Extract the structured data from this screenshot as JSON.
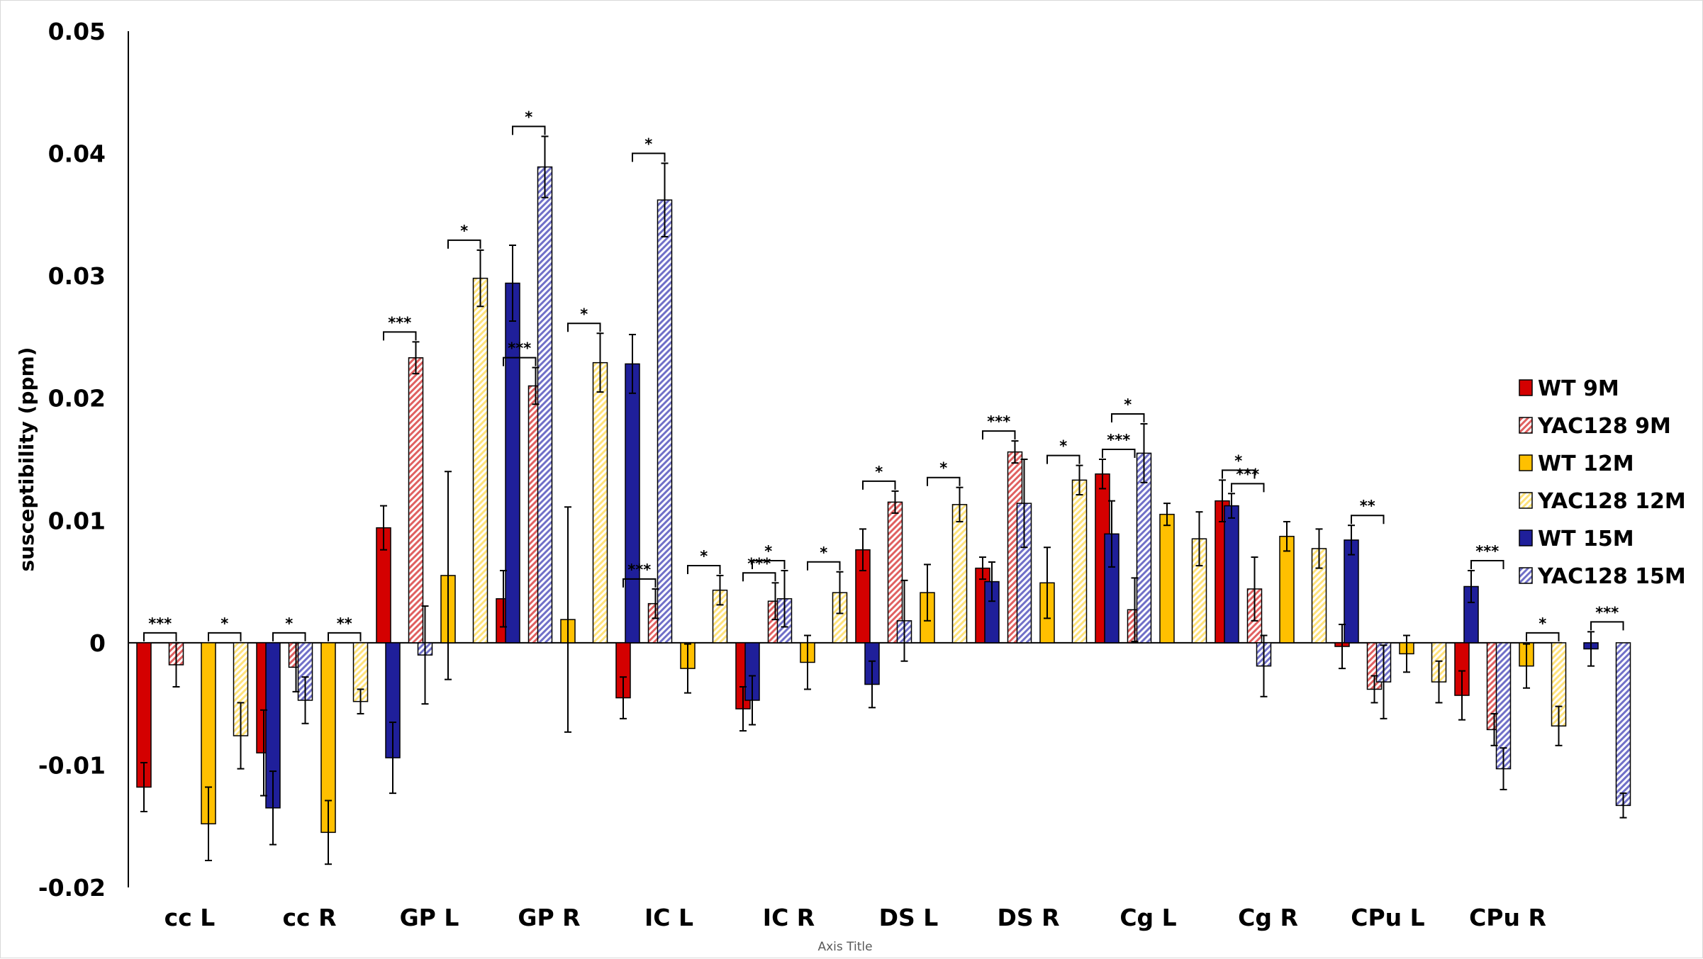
{
  "chart_data": {
    "type": "bar",
    "title": "",
    "xlabel": "Axis Title",
    "ylabel": "susceptibility (ppm)",
    "ylim": [
      -0.02,
      0.05
    ],
    "yticks": [
      0.05,
      0.04,
      0.03,
      0.02,
      0.01,
      0,
      -0.01,
      -0.02
    ],
    "ytick_labels": [
      "0.05",
      "0.04",
      "0.03",
      "0.02",
      "0.01",
      "0",
      "-0.01",
      "-0.02"
    ],
    "legend_position": "right",
    "categories": [
      "cc L",
      "cc R",
      "GP L",
      "GP R",
      "IC L",
      "IC R",
      "DS L",
      "DS R",
      "Cg L",
      "Cg R",
      "CPu L",
      "CPu R"
    ],
    "series": [
      {
        "name": "WT 9M",
        "color": "#d40000",
        "pattern": "solid",
        "values": [
          -0.0118,
          -0.009,
          0.0094,
          0.0036,
          -0.0045,
          -0.0054,
          0.0076,
          0.0061,
          0.0138,
          0.0116,
          -0.0003,
          -0.0043
        ],
        "errors": [
          0.002,
          0.0035,
          0.0018,
          0.0023,
          0.0017,
          0.0018,
          0.0017,
          0.0009,
          0.0012,
          0.0017,
          0.0018,
          0.002
        ]
      },
      {
        "name": "YAC128 9M",
        "color": "#e06060",
        "pattern": "hatched",
        "values": [
          -0.0018,
          -0.002,
          0.0233,
          0.021,
          0.0032,
          0.0034,
          0.0115,
          0.0156,
          0.0027,
          0.0044,
          -0.0038,
          -0.0071
        ],
        "errors": [
          0.0018,
          0.002,
          0.0013,
          0.0015,
          0.0012,
          0.0015,
          0.0009,
          0.0009,
          0.0026,
          0.0026,
          0.0011,
          0.0013
        ]
      },
      {
        "name": "WT 12M",
        "color": "#ffc000",
        "pattern": "solid",
        "values": [
          -0.0148,
          -0.0155,
          0.0055,
          0.0019,
          -0.0021,
          -0.0016,
          0.0041,
          0.0049,
          0.0105,
          0.0087,
          -0.0009,
          -0.0019
        ],
        "errors": [
          0.003,
          0.0026,
          0.0085,
          0.0092,
          0.002,
          0.0022,
          0.0023,
          0.0029,
          0.0009,
          0.0012,
          0.0015,
          0.0018
        ]
      },
      {
        "name": "YAC128 12M",
        "color": "#ffe27a",
        "pattern": "hatched",
        "values": [
          -0.0076,
          -0.0048,
          0.0298,
          0.0229,
          0.0043,
          0.0041,
          0.0113,
          0.0133,
          0.0085,
          0.0077,
          -0.0032,
          -0.0068
        ],
        "errors": [
          0.0027,
          0.001,
          0.0023,
          0.0024,
          0.0012,
          0.0017,
          0.0014,
          0.0012,
          0.0022,
          0.0016,
          0.0017,
          0.0016
        ]
      },
      {
        "name": "WT 15M",
        "color": "#1f1f9a",
        "pattern": "solid",
        "values": [
          -0.0135,
          -0.0094,
          0.0294,
          0.0228,
          -0.0047,
          -0.0034,
          0.005,
          0.0089,
          0.0112,
          0.0084,
          0.0046,
          -0.0005
        ]
      },
      {
        "name": "YAC128 15M",
        "color": "#7070c8",
        "pattern": "hatched",
        "values": [
          -0.0047,
          -0.001,
          0.0389,
          0.0362,
          0.0036,
          0.0018,
          0.0114,
          0.0155,
          -0.0019,
          -0.0032,
          -0.0103,
          -0.0133
        ],
        "errors": [
          0.0019,
          0.004,
          0.0025,
          0.003,
          0.0023,
          0.0033,
          0.0036,
          0.0024,
          0.0025,
          0.003,
          0.0017,
          0.001
        ]
      }
    ],
    "wt15_errors": [
      0.003,
      0.0029,
      0.0031,
      0.0024,
      0.002,
      0.0019,
      0.0016,
      0.0027,
      0.001,
      0.0012,
      0.0013,
      0.0014
    ],
    "significance": [
      {
        "category": "cc L",
        "pair": [
          0,
          1
        ],
        "label": "***"
      },
      {
        "category": "cc L",
        "pair": [
          2,
          3
        ],
        "label": "*"
      },
      {
        "category": "cc L",
        "pair": [
          4,
          5
        ],
        "label": "*"
      },
      {
        "category": "cc R",
        "pair": [
          2,
          3
        ],
        "label": "**"
      },
      {
        "category": "GP L",
        "pair": [
          0,
          1
        ],
        "label": "***"
      },
      {
        "category": "GP L",
        "pair": [
          2,
          3
        ],
        "label": "*"
      },
      {
        "category": "GP L",
        "pair": [
          4,
          5
        ],
        "label": "*"
      },
      {
        "category": "GP R",
        "pair": [
          0,
          1
        ],
        "label": "***"
      },
      {
        "category": "GP R",
        "pair": [
          2,
          3
        ],
        "label": "*"
      },
      {
        "category": "GP R",
        "pair": [
          4,
          5
        ],
        "label": "*"
      },
      {
        "category": "IC L",
        "pair": [
          0,
          1
        ],
        "label": "***"
      },
      {
        "category": "IC L",
        "pair": [
          2,
          3
        ],
        "label": "*"
      },
      {
        "category": "IC L",
        "pair": [
          4,
          5
        ],
        "label": "*"
      },
      {
        "category": "IC R",
        "pair": [
          0,
          1
        ],
        "label": "***"
      },
      {
        "category": "IC R",
        "pair": [
          2,
          3
        ],
        "label": "*"
      },
      {
        "category": "DS L",
        "pair": [
          0,
          1
        ],
        "label": "*"
      },
      {
        "category": "DS L",
        "pair": [
          2,
          3
        ],
        "label": "*"
      },
      {
        "category": "DS R",
        "pair": [
          0,
          1
        ],
        "label": "***"
      },
      {
        "category": "DS R",
        "pair": [
          2,
          3
        ],
        "label": "*"
      },
      {
        "category": "DS R",
        "pair": [
          4,
          5
        ],
        "label": "*"
      },
      {
        "category": "Cg L",
        "pair": [
          0,
          1
        ],
        "label": "***"
      },
      {
        "category": "Cg L",
        "pair": [
          4,
          5
        ],
        "label": "***"
      },
      {
        "category": "Cg R",
        "pair": [
          0,
          1
        ],
        "label": "*"
      },
      {
        "category": "Cg R",
        "pair": [
          4,
          5
        ],
        "label": "**"
      },
      {
        "category": "CPu L",
        "pair": [
          4,
          5
        ],
        "label": "***"
      },
      {
        "category": "CPu R",
        "pair": [
          2,
          3
        ],
        "label": "*"
      },
      {
        "category": "CPu R",
        "pair": [
          4,
          5
        ],
        "label": "***"
      }
    ]
  }
}
